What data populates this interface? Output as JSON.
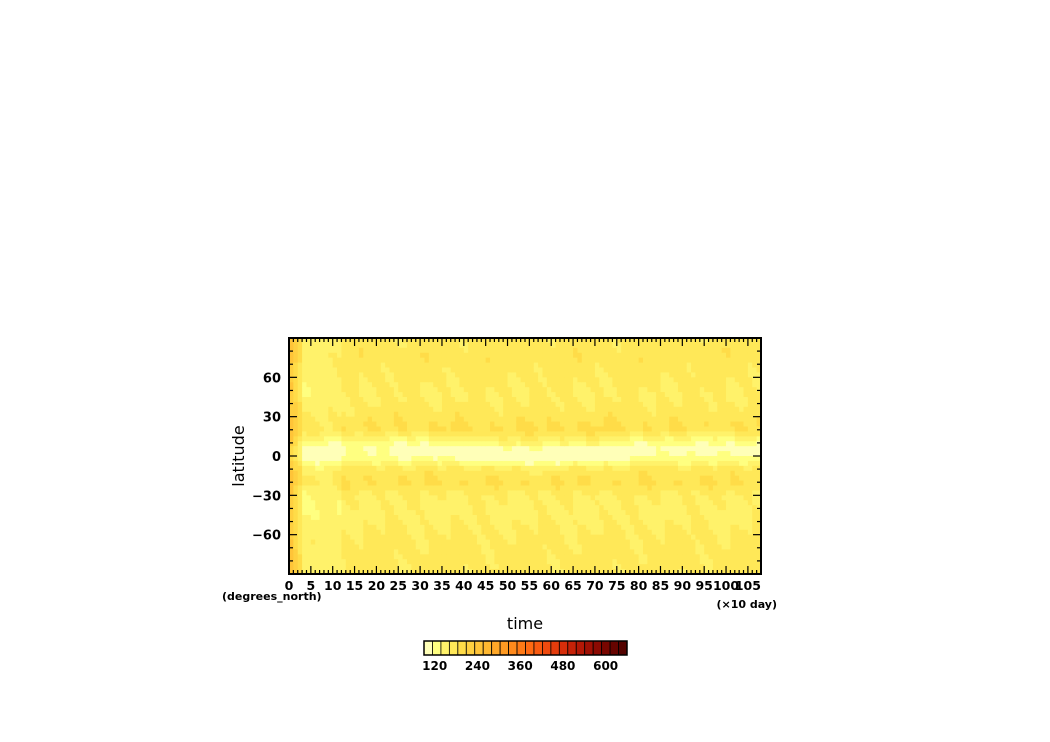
{
  "chart_data": {
    "type": "heatmap",
    "xlabel": "time",
    "xunit": "(×10 day)",
    "ylabel": "latitude",
    "yunit": "(degrees_north)",
    "xlim": [
      0,
      108
    ],
    "ylim": [
      -90,
      90
    ],
    "x_ticks": [
      0,
      5,
      10,
      15,
      20,
      25,
      30,
      35,
      40,
      45,
      50,
      55,
      60,
      65,
      70,
      75,
      80,
      85,
      90,
      95,
      100,
      105
    ],
    "x_tick_labels": [
      "0",
      "5",
      "10",
      "15",
      "20",
      "25",
      "30",
      "35",
      "40",
      "45",
      "50",
      "55",
      "60",
      "65",
      "70",
      "75",
      "80",
      "85",
      "90",
      "95",
      "100",
      "105"
    ],
    "y_ticks": [
      60,
      30,
      0,
      -30,
      -60
    ],
    "y_tick_labels": [
      "60",
      "30",
      "0",
      "−30",
      "−60"
    ],
    "colorbar": {
      "range": [
        90,
        660
      ],
      "tick_values": [
        120,
        240,
        360,
        480,
        600
      ],
      "tick_labels": [
        "120",
        "240",
        "360",
        "480",
        "600"
      ],
      "colors": [
        "#ffffb8",
        "#ffff80",
        "#fff26a",
        "#ffe858",
        "#ffdc48",
        "#ffd040",
        "#ffc438",
        "#ffb830",
        "#ffa828",
        "#ff9a22",
        "#ff8a1c",
        "#ff7a16",
        "#ff6a12",
        "#f85a10",
        "#f04a0e",
        "#e43c0c",
        "#d62e0a",
        "#c62208",
        "#b41806",
        "#a01004",
        "#8c0a02",
        "#780600",
        "#660400",
        "#540200"
      ]
    },
    "grid": false,
    "field_description_rows_by_latitude": {
      "latitudes": [
        90,
        75,
        60,
        45,
        30,
        20,
        10,
        5,
        0,
        -5,
        -10,
        -20,
        -30,
        -45,
        -60,
        -75,
        -90
      ],
      "mean_values": [
        170,
        175,
        168,
        160,
        175,
        190,
        150,
        125,
        120,
        140,
        170,
        185,
        160,
        155,
        165,
        170,
        168
      ]
    }
  }
}
